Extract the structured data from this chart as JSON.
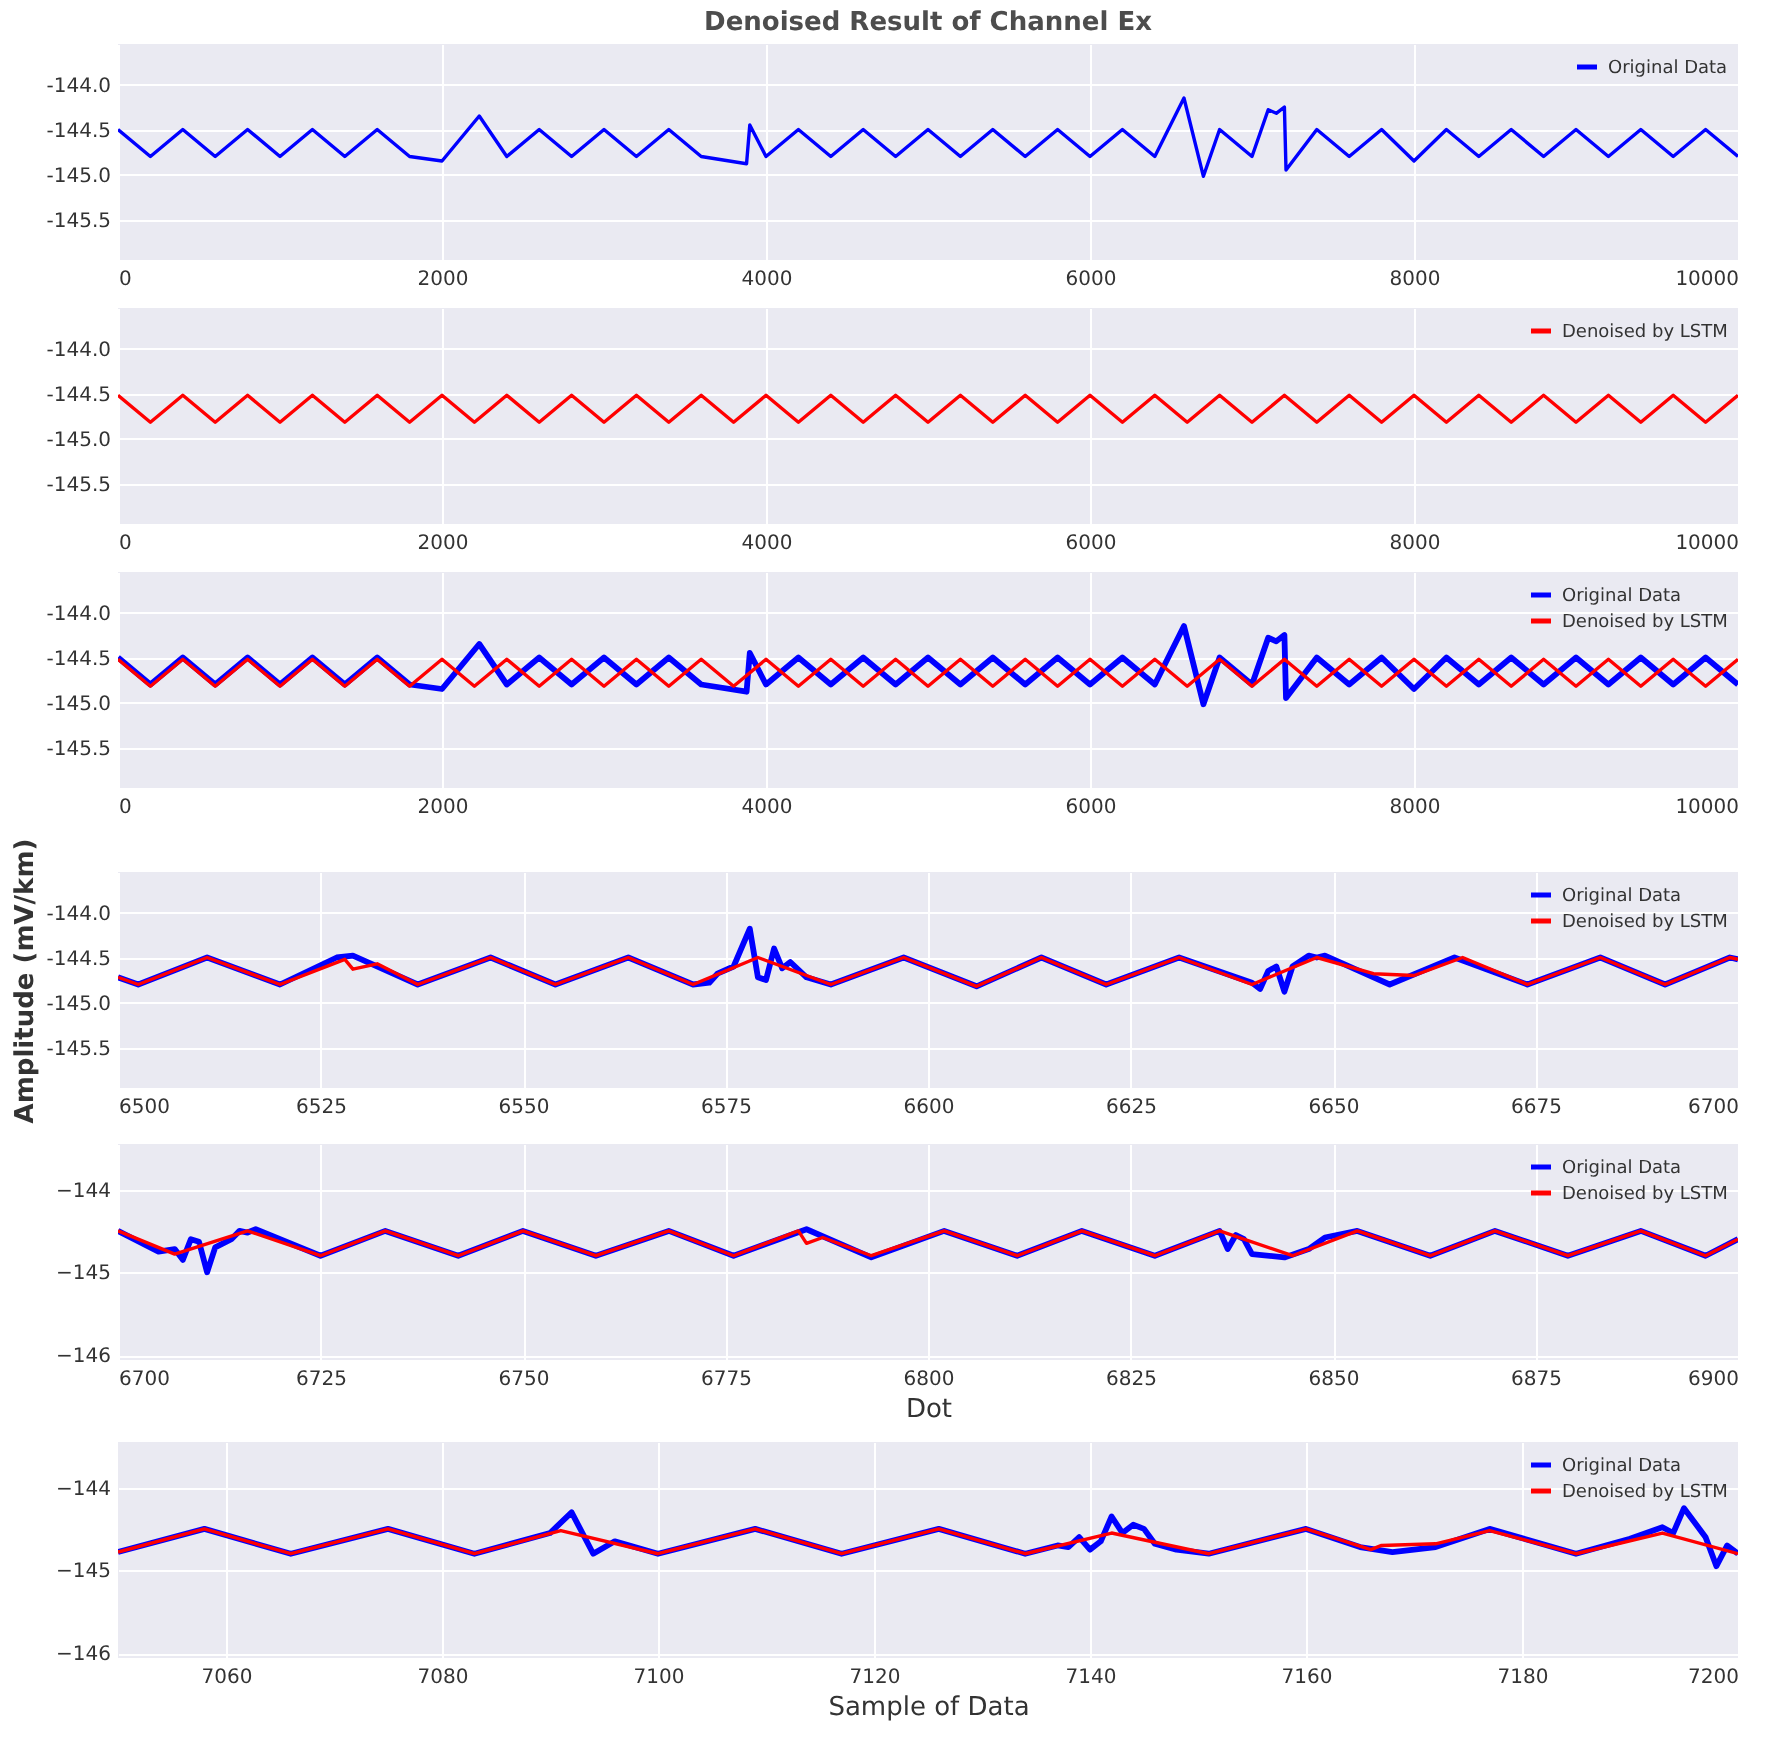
{
  "chart_data": [
    {
      "type": "line",
      "title": "Denoised Result of Channel Ex",
      "xlim": [
        0,
        10000
      ],
      "xticks": [
        0,
        2000,
        4000,
        6000,
        8000,
        10000
      ],
      "ylim": [
        -145.95,
        -143.55
      ],
      "yticks": [
        {
          "value": -144,
          "label": "-144.0"
        },
        {
          "value": -144.5,
          "label": "-144.5"
        },
        {
          "value": -145,
          "label": "-145.0"
        },
        {
          "value": -145.5,
          "label": "-145.5"
        }
      ],
      "grid": true,
      "legend": "top right",
      "series": [
        {
          "name": "Original Data",
          "color": "#0000ff",
          "x": [
            0,
            200,
            400,
            600,
            800,
            1000,
            1200,
            1400,
            1600,
            1800,
            2000,
            2230,
            2400,
            2600,
            2800,
            3000,
            3200,
            3400,
            3600,
            3880,
            3900,
            4000,
            4200,
            4400,
            4600,
            4800,
            5000,
            5200,
            5400,
            5600,
            5800,
            6000,
            6200,
            6400,
            6580,
            6700,
            6800,
            7000,
            7100,
            7150,
            7200,
            7210,
            7400,
            7600,
            7800,
            8000,
            8200,
            8400,
            8600,
            8800,
            9000,
            9200,
            9400,
            9600,
            9800,
            10000
          ],
          "values": [
            -144.5,
            -144.8,
            -144.5,
            -144.8,
            -144.5,
            -144.8,
            -144.5,
            -144.8,
            -144.5,
            -144.8,
            -144.85,
            -144.35,
            -144.8,
            -144.5,
            -144.8,
            -144.5,
            -144.8,
            -144.5,
            -144.8,
            -144.88,
            -144.45,
            -144.8,
            -144.5,
            -144.8,
            -144.5,
            -144.8,
            -144.5,
            -144.8,
            -144.5,
            -144.8,
            -144.5,
            -144.8,
            -144.5,
            -144.8,
            -144.15,
            -145.02,
            -144.5,
            -144.8,
            -144.28,
            -144.32,
            -144.25,
            -144.95,
            -144.5,
            -144.8,
            -144.5,
            -144.85,
            -144.5,
            -144.8,
            -144.5,
            -144.8,
            -144.5,
            -144.8,
            -144.5,
            -144.8,
            -144.5,
            -144.8
          ]
        }
      ]
    },
    {
      "type": "line",
      "xlim": [
        0,
        10000
      ],
      "xticks": [
        0,
        2000,
        4000,
        6000,
        8000,
        10000
      ],
      "ylim": [
        -145.95,
        -143.55
      ],
      "yticks": [
        {
          "value": -144,
          "label": "-144.0"
        },
        {
          "value": -144.5,
          "label": "-144.5"
        },
        {
          "value": -145,
          "label": "-145.0"
        },
        {
          "value": -145.5,
          "label": "-145.5"
        }
      ],
      "grid": true,
      "legend": "top right",
      "series": [
        {
          "name": "Denoised by LSTM",
          "color": "#ff0000",
          "x": [
            0,
            200,
            400,
            600,
            800,
            1000,
            1200,
            1400,
            1600,
            1800,
            2000,
            2200,
            2400,
            2600,
            2800,
            3000,
            3200,
            3400,
            3600,
            3800,
            4000,
            4200,
            4400,
            4600,
            4800,
            5000,
            5200,
            5400,
            5600,
            5800,
            6000,
            6200,
            6400,
            6600,
            6800,
            7000,
            7200,
            7400,
            7600,
            7800,
            8000,
            8200,
            8400,
            8600,
            8800,
            9000,
            9200,
            9400,
            9600,
            9800,
            10000
          ],
          "values": [
            -144.52,
            -144.82,
            -144.52,
            -144.82,
            -144.52,
            -144.82,
            -144.52,
            -144.82,
            -144.52,
            -144.82,
            -144.52,
            -144.82,
            -144.52,
            -144.82,
            -144.52,
            -144.82,
            -144.52,
            -144.82,
            -144.52,
            -144.82,
            -144.52,
            -144.82,
            -144.52,
            -144.82,
            -144.52,
            -144.82,
            -144.52,
            -144.82,
            -144.52,
            -144.82,
            -144.52,
            -144.82,
            -144.52,
            -144.82,
            -144.52,
            -144.82,
            -144.52,
            -144.82,
            -144.52,
            -144.82,
            -144.52,
            -144.82,
            -144.52,
            -144.82,
            -144.52,
            -144.82,
            -144.52,
            -144.82,
            -144.52,
            -144.82,
            -144.52
          ]
        }
      ]
    },
    {
      "type": "line",
      "xlim": [
        0,
        10000
      ],
      "xticks": [
        0,
        2000,
        4000,
        6000,
        8000,
        10000
      ],
      "ylim": [
        -145.95,
        -143.55
      ],
      "yticks": [
        {
          "value": -144,
          "label": "-144.0"
        },
        {
          "value": -144.5,
          "label": "-144.5"
        },
        {
          "value": -145,
          "label": "-145.0"
        },
        {
          "value": -145.5,
          "label": "-145.5"
        }
      ],
      "grid": true,
      "legend": "top right",
      "series": [
        {
          "name": "Original Data",
          "color": "#0000ff",
          "x": [
            0,
            200,
            400,
            600,
            800,
            1000,
            1200,
            1400,
            1600,
            1800,
            2000,
            2230,
            2400,
            2600,
            2800,
            3000,
            3200,
            3400,
            3600,
            3880,
            3900,
            4000,
            4200,
            4400,
            4600,
            4800,
            5000,
            5200,
            5400,
            5600,
            5800,
            6000,
            6200,
            6400,
            6580,
            6700,
            6800,
            7000,
            7100,
            7150,
            7200,
            7210,
            7400,
            7600,
            7800,
            8000,
            8200,
            8400,
            8600,
            8800,
            9000,
            9200,
            9400,
            9600,
            9800,
            10000
          ],
          "values": [
            -144.5,
            -144.8,
            -144.5,
            -144.8,
            -144.5,
            -144.8,
            -144.5,
            -144.8,
            -144.5,
            -144.8,
            -144.85,
            -144.35,
            -144.8,
            -144.5,
            -144.8,
            -144.5,
            -144.8,
            -144.5,
            -144.8,
            -144.88,
            -144.45,
            -144.8,
            -144.5,
            -144.8,
            -144.5,
            -144.8,
            -144.5,
            -144.8,
            -144.5,
            -144.8,
            -144.5,
            -144.8,
            -144.5,
            -144.8,
            -144.15,
            -145.02,
            -144.5,
            -144.8,
            -144.28,
            -144.32,
            -144.25,
            -144.95,
            -144.5,
            -144.8,
            -144.5,
            -144.85,
            -144.5,
            -144.8,
            -144.5,
            -144.8,
            -144.5,
            -144.8,
            -144.5,
            -144.8,
            -144.5,
            -144.8
          ]
        },
        {
          "name": "Denoised by LSTM",
          "color": "#ff0000",
          "x": [
            0,
            200,
            400,
            600,
            800,
            1000,
            1200,
            1400,
            1600,
            1800,
            2000,
            2200,
            2400,
            2600,
            2800,
            3000,
            3200,
            3400,
            3600,
            3800,
            4000,
            4200,
            4400,
            4600,
            4800,
            5000,
            5200,
            5400,
            5600,
            5800,
            6000,
            6200,
            6400,
            6600,
            6800,
            7000,
            7200,
            7400,
            7600,
            7800,
            8000,
            8200,
            8400,
            8600,
            8800,
            9000,
            9200,
            9400,
            9600,
            9800,
            10000
          ],
          "values": [
            -144.52,
            -144.82,
            -144.52,
            -144.82,
            -144.52,
            -144.82,
            -144.52,
            -144.82,
            -144.52,
            -144.82,
            -144.52,
            -144.82,
            -144.52,
            -144.82,
            -144.52,
            -144.82,
            -144.52,
            -144.82,
            -144.52,
            -144.82,
            -144.52,
            -144.82,
            -144.52,
            -144.82,
            -144.52,
            -144.82,
            -144.52,
            -144.82,
            -144.52,
            -144.82,
            -144.52,
            -144.82,
            -144.52,
            -144.82,
            -144.52,
            -144.82,
            -144.52,
            -144.82,
            -144.52,
            -144.82,
            -144.52,
            -144.82,
            -144.52,
            -144.82,
            -144.52,
            -144.82,
            -144.52,
            -144.82,
            -144.52,
            -144.82,
            -144.52
          ]
        }
      ]
    },
    {
      "type": "line",
      "ylabel": "Amplitude (mV/km)",
      "xlim": [
        6500,
        6700
      ],
      "xticks": [
        6500,
        6525,
        6550,
        6575,
        6600,
        6625,
        6650,
        6675,
        6700
      ],
      "ylim": [
        -145.95,
        -143.55
      ],
      "yticks": [
        {
          "value": -144,
          "label": "-144.0"
        },
        {
          "value": -144.5,
          "label": "-144.5"
        },
        {
          "value": -145,
          "label": "-145.0"
        },
        {
          "value": -145.5,
          "label": "-145.5"
        }
      ],
      "grid": true,
      "legend": "top right",
      "series": [
        {
          "name": "Original Data",
          "color": "#0000ff",
          "x": [
            6500,
            6502.5,
            6511,
            6520,
            6527,
            6529,
            6537,
            6546,
            6554,
            6563,
            6571,
            6573,
            6574,
            6576,
            6578,
            6579,
            6580,
            6581,
            6582,
            6583,
            6585,
            6588,
            6597,
            6606,
            6614,
            6622,
            6631,
            6640,
            6641,
            6642,
            6643,
            6644,
            6645,
            6647,
            6648,
            6649,
            6657,
            6665,
            6674,
            6683,
            6691,
            6699,
            6700
          ],
          "values": [
            -144.72,
            -144.8,
            -144.5,
            -144.8,
            -144.5,
            -144.48,
            -144.8,
            -144.5,
            -144.8,
            -144.5,
            -144.8,
            -144.78,
            -144.68,
            -144.6,
            -144.18,
            -144.72,
            -144.75,
            -144.4,
            -144.62,
            -144.55,
            -144.72,
            -144.8,
            -144.5,
            -144.82,
            -144.5,
            -144.8,
            -144.5,
            -144.78,
            -144.85,
            -144.65,
            -144.6,
            -144.88,
            -144.6,
            -144.48,
            -144.5,
            -144.48,
            -144.8,
            -144.5,
            -144.8,
            -144.5,
            -144.8,
            -144.5,
            -144.52
          ]
        },
        {
          "name": "Denoised by LSTM",
          "color": "#ff0000",
          "x": [
            6500,
            6502.5,
            6511,
            6520,
            6528,
            6529,
            6532,
            6537,
            6546,
            6554,
            6563,
            6571,
            6579,
            6588,
            6597,
            6606,
            6614,
            6622,
            6631,
            6640,
            6648,
            6655,
            6660,
            6666,
            6674,
            6683,
            6691,
            6699,
            6700
          ],
          "values": [
            -144.72,
            -144.8,
            -144.5,
            -144.8,
            -144.52,
            -144.63,
            -144.57,
            -144.8,
            -144.5,
            -144.8,
            -144.5,
            -144.8,
            -144.5,
            -144.8,
            -144.5,
            -144.82,
            -144.5,
            -144.8,
            -144.5,
            -144.8,
            -144.5,
            -144.68,
            -144.7,
            -144.5,
            -144.8,
            -144.5,
            -144.8,
            -144.5,
            -144.52
          ]
        }
      ]
    },
    {
      "type": "line",
      "xlabel": "Dot",
      "xlim": [
        6700,
        6900
      ],
      "xticks": [
        6700,
        6725,
        6750,
        6775,
        6800,
        6825,
        6850,
        6875,
        6900
      ],
      "ylim": [
        -146.06,
        -143.45
      ],
      "yticks": [
        {
          "value": -144,
          "label": "−144"
        },
        {
          "value": -145,
          "label": "−145"
        },
        {
          "value": -146,
          "label": "−146"
        }
      ],
      "grid": true,
      "legend": "top right",
      "series": [
        {
          "name": "Original Data",
          "color": "#0000ff",
          "x": [
            6700,
            6705,
            6707,
            6708,
            6709,
            6710,
            6711,
            6712,
            6714,
            6715,
            6716,
            6717,
            6725,
            6733,
            6742,
            6750,
            6759,
            6768,
            6776,
            6785,
            6793,
            6802,
            6811,
            6819,
            6828,
            6836,
            6837,
            6838,
            6839,
            6840,
            6844,
            6847,
            6849,
            6853,
            6862,
            6870,
            6879,
            6888,
            6896,
            6900
          ],
          "values": [
            -144.5,
            -144.75,
            -144.72,
            -144.85,
            -144.6,
            -144.63,
            -145.0,
            -144.7,
            -144.6,
            -144.5,
            -144.52,
            -144.48,
            -144.8,
            -144.5,
            -144.8,
            -144.5,
            -144.8,
            -144.5,
            -144.8,
            -144.48,
            -144.82,
            -144.5,
            -144.8,
            -144.5,
            -144.8,
            -144.5,
            -144.72,
            -144.55,
            -144.6,
            -144.78,
            -144.82,
            -144.72,
            -144.58,
            -144.5,
            -144.8,
            -144.5,
            -144.8,
            -144.5,
            -144.8,
            -144.6
          ]
        },
        {
          "name": "Denoised by LSTM",
          "color": "#ff0000",
          "x": [
            6700,
            6707,
            6716,
            6725,
            6733,
            6742,
            6750,
            6759,
            6768,
            6776,
            6784,
            6785,
            6787,
            6793,
            6802,
            6811,
            6819,
            6828,
            6836,
            6845,
            6853,
            6862,
            6870,
            6879,
            6888,
            6896,
            6900
          ],
          "values": [
            -144.5,
            -144.78,
            -144.5,
            -144.8,
            -144.5,
            -144.8,
            -144.5,
            -144.8,
            -144.5,
            -144.8,
            -144.5,
            -144.65,
            -144.58,
            -144.8,
            -144.5,
            -144.8,
            -144.5,
            -144.8,
            -144.5,
            -144.8,
            -144.5,
            -144.8,
            -144.5,
            -144.8,
            -144.5,
            -144.8,
            -144.6
          ]
        }
      ]
    },
    {
      "type": "line",
      "xlabel": "Sample of Data",
      "xlim": [
        7050,
        7200
      ],
      "xticks": [
        7060,
        7080,
        7100,
        7120,
        7140,
        7160,
        7180,
        7200
      ],
      "ylim": [
        -146.06,
        -143.45
      ],
      "yticks": [
        {
          "value": -144,
          "label": "−144"
        },
        {
          "value": -145,
          "label": "−145"
        },
        {
          "value": -146,
          "label": "−146"
        }
      ],
      "grid": true,
      "legend": "top right",
      "series": [
        {
          "name": "Original Data",
          "color": "#0000ff",
          "x": [
            7050,
            7058,
            7066,
            7075,
            7083,
            7090,
            7092,
            7094,
            7096,
            7100,
            7109,
            7117,
            7126,
            7134,
            7137,
            7138,
            7139,
            7140,
            7141,
            7142,
            7143,
            7144,
            7145,
            7146,
            7148,
            7151,
            7160,
            7165,
            7168,
            7172,
            7177,
            7185,
            7190,
            7193,
            7194,
            7195,
            7197,
            7198,
            7199,
            7200
          ],
          "values": [
            -144.78,
            -144.5,
            -144.8,
            -144.5,
            -144.8,
            -144.55,
            -144.3,
            -144.8,
            -144.65,
            -144.8,
            -144.5,
            -144.8,
            -144.5,
            -144.8,
            -144.7,
            -144.72,
            -144.6,
            -144.75,
            -144.65,
            -144.35,
            -144.55,
            -144.45,
            -144.5,
            -144.68,
            -144.75,
            -144.8,
            -144.5,
            -144.72,
            -144.78,
            -144.72,
            -144.5,
            -144.8,
            -144.62,
            -144.48,
            -144.55,
            -144.25,
            -144.6,
            -144.95,
            -144.7,
            -144.8
          ]
        },
        {
          "name": "Denoised by LSTM",
          "color": "#ff0000",
          "x": [
            7050,
            7058,
            7066,
            7075,
            7083,
            7091,
            7100,
            7109,
            7117,
            7126,
            7134,
            7142,
            7151,
            7160,
            7166,
            7167,
            7172,
            7177,
            7185,
            7193,
            7200
          ],
          "values": [
            -144.78,
            -144.5,
            -144.8,
            -144.5,
            -144.8,
            -144.52,
            -144.8,
            -144.5,
            -144.8,
            -144.5,
            -144.8,
            -144.55,
            -144.8,
            -144.5,
            -144.75,
            -144.7,
            -144.68,
            -144.52,
            -144.8,
            -144.55,
            -144.8
          ]
        }
      ]
    }
  ]
}
